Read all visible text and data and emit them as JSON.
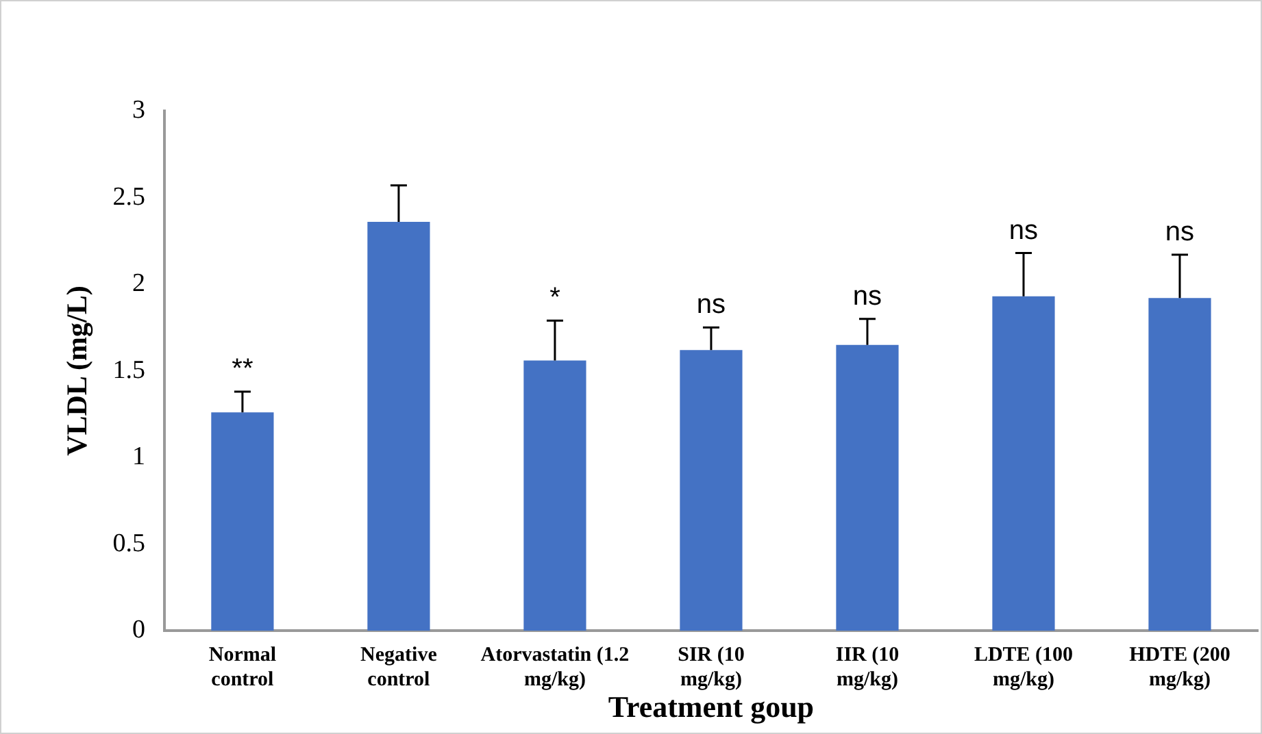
{
  "chart_data": {
    "type": "bar",
    "xlabel": "Treatment goup",
    "ylabel": "VLDL (mg/L)",
    "categories": [
      "Normal control",
      "Negative control",
      "Atorvastatin (1.2 mg/kg)",
      "SIR (10 mg/kg)",
      "IIR (10 mg/kg)",
      "LDTE (100 mg/kg)",
      "HDTE (200 mg/kg)"
    ],
    "values": [
      1.26,
      2.36,
      1.56,
      1.62,
      1.65,
      1.93,
      1.92
    ],
    "errors": [
      [
        1.26,
        1.38
      ],
      [
        2.36,
        2.57
      ],
      [
        1.56,
        1.79
      ],
      [
        1.62,
        1.75
      ],
      [
        1.65,
        1.8
      ],
      [
        1.93,
        2.18
      ],
      [
        1.92,
        2.17
      ]
    ],
    "color": "#4472c4",
    "ylim": [
      0,
      3
    ],
    "yticks": [
      0,
      0.5,
      1,
      1.5,
      2,
      2.5,
      3
    ],
    "grid": false,
    "legend": false,
    "annotations": [
      {
        "text": "**",
        "x": "Normal control",
        "y": 1.38
      },
      {
        "text": "*",
        "x": "Atorvastatin (1.2 mg/kg)",
        "y": 1.79
      },
      {
        "text": "ns",
        "x": "SIR (10 mg/kg)",
        "y": 1.75
      },
      {
        "text": "ns",
        "x": "IIR (10 mg/kg)",
        "y": 1.8
      },
      {
        "text": "ns",
        "x": "LDTE (100 mg/kg)",
        "y": 2.18
      },
      {
        "text": "ns",
        "x": "HDTE (200 mg/kg)",
        "y": 2.17
      }
    ]
  }
}
